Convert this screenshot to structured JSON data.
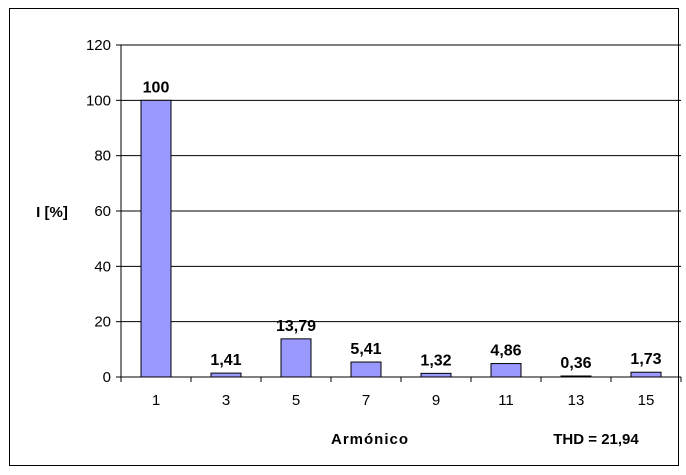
{
  "chart_data": {
    "type": "bar",
    "categories": [
      "1",
      "3",
      "5",
      "7",
      "9",
      "11",
      "13",
      "15"
    ],
    "values": [
      100,
      1.41,
      13.79,
      5.41,
      1.32,
      4.86,
      0.36,
      1.73
    ],
    "data_labels": [
      "100",
      "1,41",
      "13,79",
      "5,41",
      "1,32",
      "4,86",
      "0,36",
      "1,73"
    ],
    "yticks": [
      "0",
      "20",
      "40",
      "60",
      "80",
      "100",
      "120"
    ],
    "ylim": [
      0,
      120
    ],
    "ylabel": "I [%]",
    "xlabel": "Armónico",
    "annotation": "THD = 21,94",
    "grid": true,
    "bar_color": "#9999FF"
  }
}
